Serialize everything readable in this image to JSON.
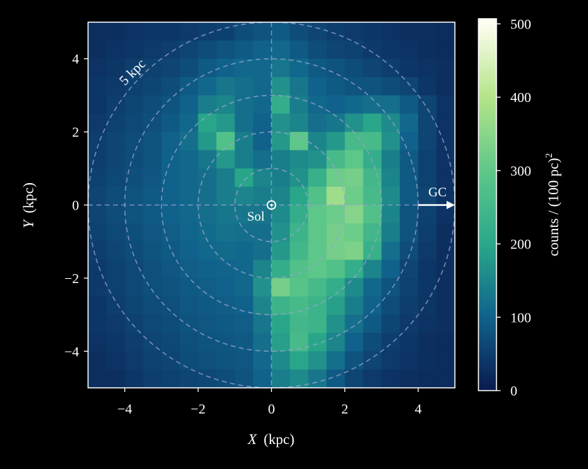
{
  "chart_data": {
    "type": "heatmap",
    "title": "",
    "xlabel_var": "X",
    "xlabel_unit": "(kpc)",
    "ylabel_var": "Y",
    "ylabel_unit": "(kpc)",
    "xlim": [
      -5,
      5
    ],
    "ylim": [
      -5,
      5
    ],
    "xticks": [
      -4,
      -2,
      0,
      2,
      4
    ],
    "yticks": [
      -4,
      -2,
      0,
      2,
      4
    ],
    "xtick_labels": [
      "−4",
      "−2",
      "0",
      "2",
      "4"
    ],
    "ytick_labels": [
      "−4",
      "−2",
      "0",
      "2",
      "4"
    ],
    "grid": false,
    "colorbar": {
      "label_main": "counts / (100 pc)",
      "label_sup": "2",
      "range": [
        0,
        507
      ],
      "ticks": [
        0,
        100,
        200,
        300,
        400,
        500
      ],
      "tick_labels": [
        "0",
        "100",
        "200",
        "300",
        "400",
        "500"
      ],
      "colors": [
        "#0a1a4e",
        "#10628c",
        "#2aa88a",
        "#5fc789",
        "#b5e48a",
        "#fdfdf0"
      ]
    },
    "bin_size_kpc": 0.5,
    "x_centers": [
      -4.75,
      -4.25,
      -3.75,
      -3.25,
      -2.75,
      -2.25,
      -1.75,
      -1.25,
      -0.75,
      -0.25,
      0.25,
      0.75,
      1.25,
      1.75,
      2.25,
      2.75,
      3.25,
      3.75,
      4.25,
      4.75
    ],
    "y_centers": [
      4.75,
      4.25,
      3.75,
      3.25,
      2.75,
      2.25,
      1.75,
      1.25,
      0.75,
      0.25,
      -0.25,
      -0.75,
      -1.25,
      -1.75,
      -2.25,
      -2.75,
      -3.25,
      -3.75,
      -4.25,
      -4.75
    ],
    "values": [
      [
        30,
        30,
        35,
        40,
        40,
        45,
        50,
        55,
        70,
        80,
        90,
        70,
        60,
        50,
        45,
        40,
        35,
        30,
        30,
        25
      ],
      [
        30,
        35,
        40,
        45,
        50,
        60,
        70,
        80,
        90,
        100,
        110,
        90,
        70,
        60,
        55,
        45,
        40,
        35,
        30,
        25
      ],
      [
        35,
        40,
        50,
        55,
        60,
        70,
        90,
        100,
        110,
        110,
        130,
        110,
        90,
        80,
        70,
        60,
        50,
        40,
        35,
        30
      ],
      [
        40,
        45,
        55,
        60,
        70,
        90,
        110,
        130,
        120,
        110,
        170,
        130,
        100,
        90,
        80,
        80,
        70,
        60,
        40,
        30
      ],
      [
        40,
        50,
        60,
        70,
        80,
        100,
        140,
        150,
        120,
        110,
        220,
        140,
        110,
        100,
        110,
        120,
        120,
        90,
        60,
        35
      ],
      [
        45,
        55,
        65,
        75,
        90,
        110,
        200,
        180,
        120,
        100,
        170,
        150,
        120,
        130,
        170,
        200,
        160,
        110,
        60,
        35
      ],
      [
        50,
        60,
        70,
        80,
        100,
        120,
        180,
        280,
        140,
        100,
        180,
        300,
        150,
        180,
        260,
        260,
        170,
        100,
        60,
        35
      ],
      [
        50,
        60,
        70,
        80,
        100,
        110,
        130,
        180,
        140,
        120,
        140,
        160,
        170,
        260,
        300,
        220,
        140,
        90,
        55,
        35
      ],
      [
        55,
        65,
        75,
        85,
        100,
        110,
        120,
        140,
        200,
        150,
        140,
        170,
        230,
        320,
        330,
        250,
        150,
        90,
        55,
        35
      ],
      [
        60,
        70,
        80,
        90,
        100,
        110,
        120,
        140,
        150,
        140,
        150,
        200,
        280,
        380,
        320,
        260,
        160,
        90,
        60,
        35
      ],
      [
        60,
        70,
        80,
        90,
        100,
        110,
        120,
        130,
        130,
        130,
        160,
        220,
        300,
        320,
        350,
        280,
        150,
        80,
        55,
        35
      ],
      [
        55,
        65,
        75,
        85,
        95,
        105,
        115,
        125,
        120,
        120,
        170,
        240,
        300,
        330,
        320,
        250,
        140,
        80,
        50,
        30
      ],
      [
        50,
        60,
        70,
        80,
        90,
        100,
        110,
        115,
        110,
        120,
        180,
        250,
        300,
        330,
        340,
        230,
        120,
        70,
        45,
        30
      ],
      [
        45,
        55,
        65,
        75,
        85,
        95,
        100,
        105,
        110,
        150,
        220,
        280,
        300,
        280,
        220,
        150,
        100,
        60,
        40,
        30
      ],
      [
        45,
        55,
        65,
        75,
        80,
        90,
        95,
        100,
        110,
        170,
        330,
        290,
        260,
        220,
        160,
        110,
        80,
        55,
        40,
        30
      ],
      [
        40,
        50,
        60,
        70,
        75,
        85,
        90,
        95,
        100,
        150,
        240,
        260,
        240,
        190,
        140,
        100,
        70,
        50,
        40,
        30
      ],
      [
        40,
        45,
        55,
        65,
        70,
        80,
        85,
        90,
        95,
        130,
        200,
        250,
        240,
        170,
        120,
        90,
        60,
        45,
        35,
        30
      ],
      [
        35,
        40,
        50,
        60,
        65,
        75,
        80,
        85,
        90,
        120,
        190,
        260,
        200,
        150,
        100,
        70,
        50,
        40,
        30,
        25
      ],
      [
        30,
        35,
        45,
        55,
        60,
        70,
        75,
        80,
        85,
        110,
        160,
        200,
        170,
        120,
        80,
        60,
        45,
        35,
        30,
        25
      ],
      [
        30,
        30,
        40,
        50,
        55,
        60,
        65,
        70,
        80,
        100,
        140,
        160,
        130,
        90,
        60,
        45,
        35,
        30,
        25,
        25
      ]
    ],
    "rings_kpc": [
      1,
      2,
      3,
      4,
      5
    ],
    "annotations": {
      "ring_label": "5 kpc",
      "sun_label": "Sol",
      "gc_label": "GC"
    },
    "overlay_color": "#9aa6cc"
  }
}
